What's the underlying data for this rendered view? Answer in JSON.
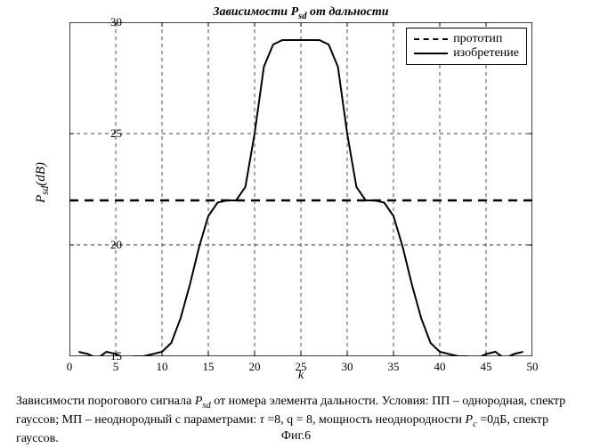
{
  "chart": {
    "type": "line",
    "title": "Зависимости P_sd от дальности",
    "xlabel": "k",
    "ylabel": "P_sd (dB)",
    "xlim": [
      0,
      50
    ],
    "ylim": [
      15,
      30
    ],
    "xticks": [
      0,
      5,
      10,
      15,
      20,
      25,
      30,
      35,
      40,
      45,
      50
    ],
    "yticks": [
      15,
      20,
      25,
      30
    ],
    "background_color": "#ffffff",
    "grid_color": "#000000",
    "grid_dash": "4 4",
    "axis_color": "#000000",
    "line_width_solid": 2.0,
    "line_width_dashed": 2.5,
    "series": [
      {
        "name": "прототип",
        "style": "dashed",
        "color": "#000000",
        "k": [
          0,
          1,
          2,
          3,
          4,
          5,
          6,
          7,
          8,
          9,
          10,
          11,
          12,
          13,
          14,
          15,
          16,
          17,
          18,
          19,
          20,
          21,
          22,
          23,
          24,
          25,
          26,
          27,
          28,
          29,
          30,
          31,
          32,
          33,
          34,
          35,
          36,
          37,
          38,
          39,
          40,
          41,
          42,
          43,
          44,
          45,
          46,
          47,
          48,
          49,
          50
        ],
        "psd": [
          22,
          22,
          22,
          22,
          22,
          22,
          22,
          22,
          22,
          22,
          22,
          22,
          22,
          22,
          22,
          22,
          22,
          22,
          22,
          22,
          22,
          22,
          22,
          22,
          22,
          22,
          22,
          22,
          22,
          22,
          22,
          22,
          22,
          22,
          22,
          22,
          22,
          22,
          22,
          22,
          22,
          22,
          22,
          22,
          22,
          22,
          22,
          22,
          22,
          22,
          22
        ]
      },
      {
        "name": "изобретение",
        "style": "solid",
        "color": "#000000",
        "k": [
          1,
          2,
          3,
          4,
          5,
          6,
          7,
          8,
          9,
          10,
          11,
          12,
          13,
          14,
          15,
          16,
          17,
          18,
          19,
          20,
          21,
          22,
          23,
          24,
          25,
          26,
          27,
          28,
          29,
          30,
          31,
          32,
          33,
          34,
          35,
          36,
          37,
          38,
          39,
          40,
          41,
          42,
          43,
          44,
          45,
          46,
          47,
          48,
          49
        ],
        "psd": [
          15.2,
          15.1,
          14.9,
          15.2,
          15.1,
          14.9,
          15.0,
          15.0,
          15.1,
          15.2,
          15.6,
          16.7,
          18.2,
          19.9,
          21.3,
          21.9,
          22.0,
          22.0,
          22.6,
          25.0,
          28.0,
          29.0,
          29.2,
          29.2,
          29.2,
          29.2,
          29.2,
          29.0,
          28.0,
          25.0,
          22.6,
          22.0,
          22.0,
          21.9,
          21.3,
          19.9,
          18.2,
          16.7,
          15.6,
          15.2,
          15.1,
          15.0,
          15.0,
          14.9,
          15.1,
          15.2,
          14.9,
          15.1,
          15.2
        ]
      }
    ],
    "legend": {
      "position": "top-right",
      "labels": [
        "прототип",
        "изобретение"
      ]
    }
  },
  "caption_parts": {
    "p1": "Зависимости порогового сигнала ",
    "psd": "P",
    "psd_sub": "sd",
    "p2": " от номера элемента дальности. Условия: ПП – однородная, спектр гауссов; МП – неоднородный с параметрами: ",
    "tau": "τ",
    "p3": " =8, q = 8, мощность неоднородности ",
    "pc": "P",
    "pc_sub": "c",
    "p4": " =0дБ, спектр гауссов."
  },
  "fig_label": "Фиг.6"
}
